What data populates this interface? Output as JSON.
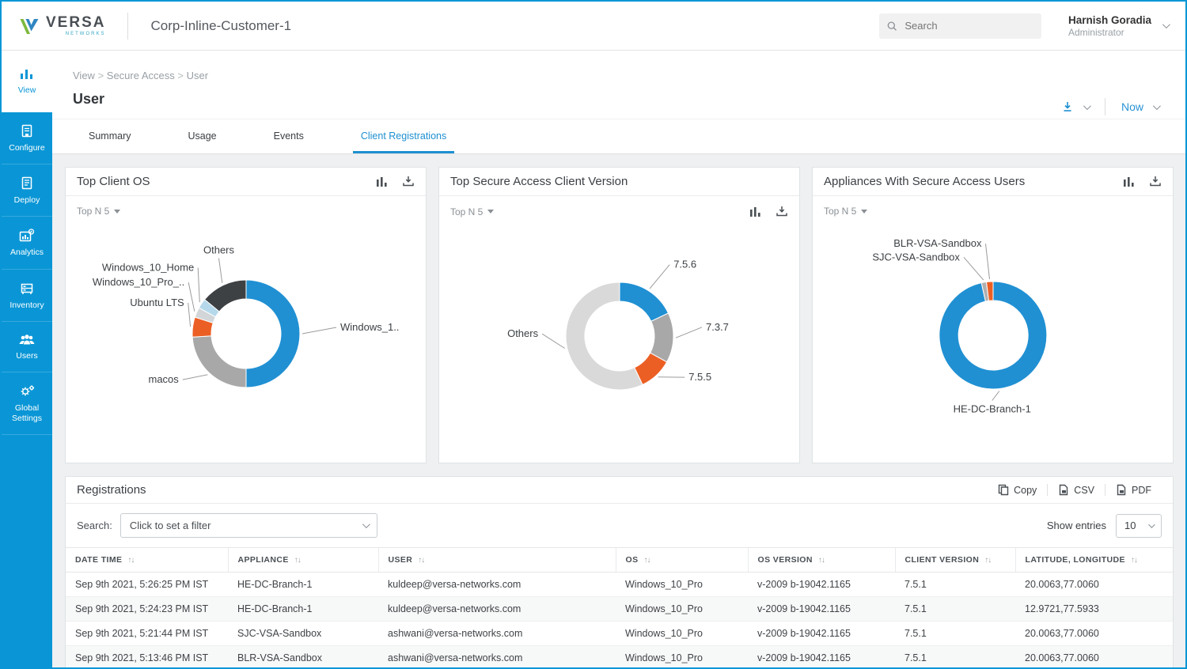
{
  "topbar": {
    "brand": {
      "name": "VERSA",
      "sub": "NETWORKS"
    },
    "title": "Corp-Inline-Customer-1",
    "search_placeholder": "Search",
    "user": {
      "name": "Harnish Goradia",
      "role": "Administrator"
    }
  },
  "sidebar": {
    "items": [
      {
        "label": "View",
        "active": true
      },
      {
        "label": "Configure"
      },
      {
        "label": "Deploy"
      },
      {
        "label": "Analytics"
      },
      {
        "label": "Inventory"
      },
      {
        "label": "Users"
      },
      {
        "label": "Global Settings"
      }
    ]
  },
  "page": {
    "breadcrumb": {
      "0": "View",
      "1": "Secure Access",
      "2": "User"
    },
    "title": "User",
    "time_range_label": "Now",
    "tabs": [
      {
        "label": "Summary"
      },
      {
        "label": "Usage"
      },
      {
        "label": "Events"
      },
      {
        "label": "Client Registrations",
        "active": true
      }
    ]
  },
  "icons": {
    "search": "magnifier",
    "user_menu": "chevron-down",
    "export": "download-arrow",
    "chart_toggle": "bar-chart",
    "copy": "copy-pages",
    "csv": "file-export",
    "pdf": "file-export",
    "sort": "up-down-arrows",
    "dropdown": "chevron-down",
    "topn": "caret-down"
  },
  "colors": {
    "sidebar": "#0a96d6",
    "accent_blue": "#1e8fd0",
    "chart_blue": "#2090d3",
    "chart_gray": "#a8a8a8",
    "chart_orange": "#ec5f24",
    "chart_dark": "#3e4144"
  },
  "chart_data": [
    {
      "type": "donut",
      "title": "Top Client OS",
      "topn": "Top N 5",
      "labels": [
        "Windows_1..",
        "macos",
        "Ubuntu LTS",
        "Windows_10_Pro_..",
        "Windows_10_Home",
        "Others"
      ],
      "values": [
        50,
        24,
        6,
        3,
        3,
        14
      ],
      "colors": [
        "#2090d3",
        "#a8a8a8",
        "#ec5f24",
        "#d2d6d8",
        "#b5d9ea",
        "#3e4144"
      ],
      "legend_position": "callout-labels"
    },
    {
      "type": "donut",
      "title": "Top Secure Access Client Version",
      "topn": "Top N 5",
      "labels": [
        "7.5.6",
        "7.3.7",
        "7.5.5",
        "Others"
      ],
      "values": [
        18,
        15,
        10,
        57
      ],
      "colors": [
        "#2090d3",
        "#a8a8a8",
        "#ec5f24",
        "#d9d9d9"
      ],
      "legend_position": "callout-labels"
    },
    {
      "type": "donut",
      "title": "Appliances With Secure Access Users",
      "topn": "Top N 5",
      "labels": [
        "HE-DC-Branch-1",
        "SJC-VSA-Sandbox",
        "BLR-VSA-Sandbox"
      ],
      "values": [
        96.5,
        1.5,
        2
      ],
      "colors": [
        "#2090d3",
        "#b0b0b0",
        "#ec5f24"
      ],
      "legend_position": "callout-labels"
    }
  ],
  "registrations": {
    "title": "Registrations",
    "actions": {
      "copy": "Copy",
      "csv": "CSV",
      "pdf": "PDF"
    },
    "search_label": "Search:",
    "filter_placeholder": "Click to set a filter",
    "show_entries_label": "Show entries",
    "show_entries_value": "10",
    "columns": [
      "DATE TIME",
      "APPLIANCE",
      "USER",
      "OS",
      "OS VERSION",
      "CLIENT VERSION",
      "LATITUDE, LONGITUDE"
    ],
    "rows": [
      [
        "Sep 9th 2021, 5:26:25 PM IST",
        "HE-DC-Branch-1",
        "kuldeep@versa-networks.com",
        "Windows_10_Pro",
        "v-2009 b-19042.1165",
        "7.5.1",
        "20.0063,77.0060"
      ],
      [
        "Sep 9th 2021, 5:24:23 PM IST",
        "HE-DC-Branch-1",
        "kuldeep@versa-networks.com",
        "Windows_10_Pro",
        "v-2009 b-19042.1165",
        "7.5.1",
        "12.9721,77.5933"
      ],
      [
        "Sep 9th 2021, 5:21:44 PM IST",
        "SJC-VSA-Sandbox",
        "ashwani@versa-networks.com",
        "Windows_10_Pro",
        "v-2009 b-19042.1165",
        "7.5.1",
        "20.0063,77.0060"
      ],
      [
        "Sep 9th 2021, 5:13:46 PM IST",
        "BLR-VSA-Sandbox",
        "ashwani@versa-networks.com",
        "Windows_10_Pro",
        "v-2009 b-19042.1165",
        "7.5.1",
        "20.0063,77.0060"
      ]
    ]
  }
}
